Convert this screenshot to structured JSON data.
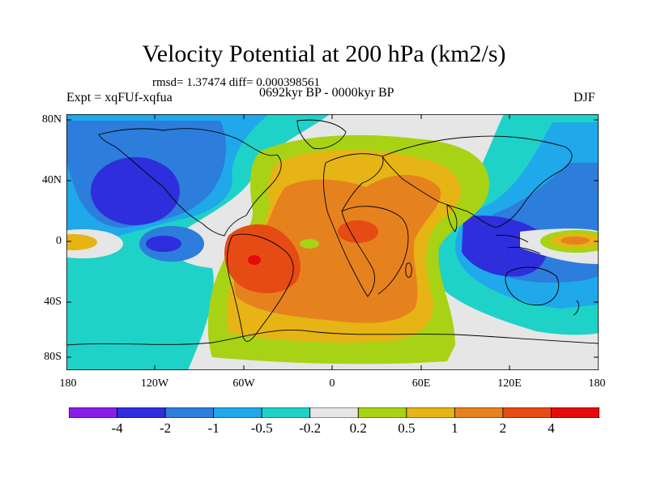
{
  "title": "Velocity Potential at 200 hPa (km2/s)",
  "stats": "rmsd= 1.37474 diff= 0.000398561",
  "experiment": "Expt = xqFUf-xqfua",
  "period": "0692kyr BP - 0000kyr BP",
  "season": "DJF",
  "axes": {
    "y_ticks": [
      "80N",
      "40N",
      "0",
      "40S",
      "80S"
    ],
    "x_ticks": [
      "180",
      "120W",
      "60W",
      "0",
      "60E",
      "120E",
      "180"
    ]
  },
  "colorbar": {
    "colors": [
      "#8a1ee6",
      "#2e2edc",
      "#2d7ddc",
      "#1fa8ea",
      "#1fd2c8",
      "#e6e6e6",
      "#a8d214",
      "#e6b414",
      "#e6821e",
      "#e64b14",
      "#e60a0a"
    ],
    "labels": [
      "-4",
      "-2",
      "-1",
      "-0.5",
      "-0.2",
      "0.2",
      "0.5",
      "1",
      "2",
      "4"
    ]
  },
  "field_colors": {
    "land_line": "#000000",
    "neutral": "#e6e6e6",
    "pos_05": "#a8d214",
    "pos_1": "#e6b414",
    "pos_2": "#e6821e",
    "pos_4": "#e64b14",
    "pos_max": "#e60a0a",
    "neg_02": "#1fd2c8",
    "neg_05": "#1fa8ea",
    "neg_1": "#2d7ddc",
    "neg_2": "#2e2edc"
  }
}
